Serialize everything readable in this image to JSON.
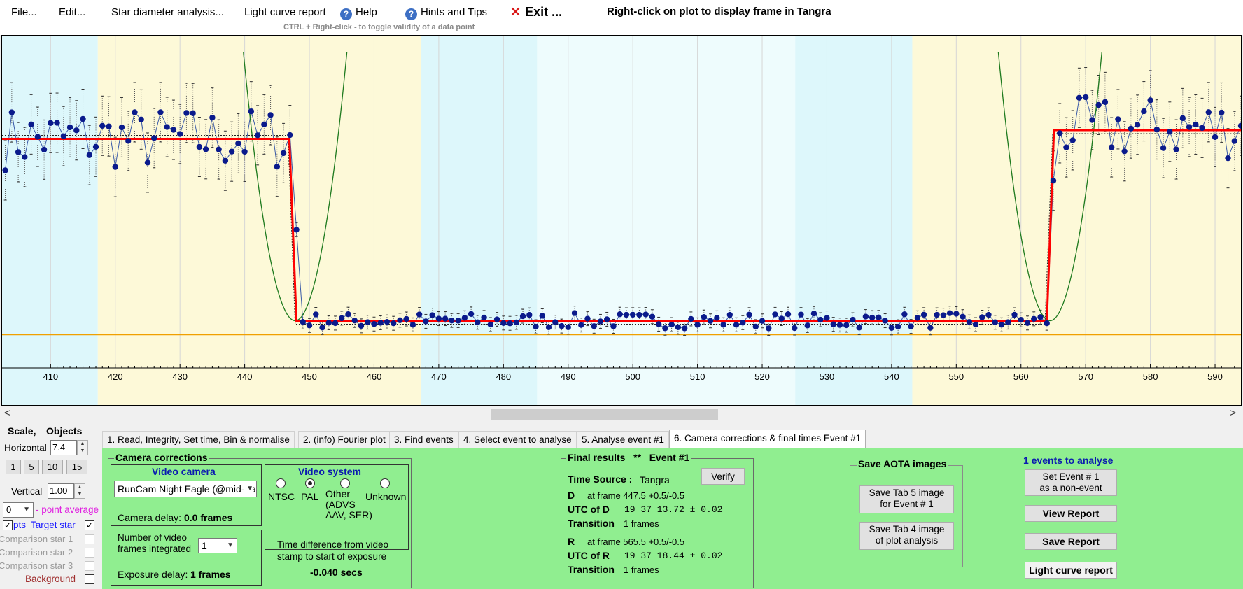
{
  "menu": {
    "file": "File...",
    "edit": "Edit...",
    "star_diameter": "Star diameter analysis...",
    "light_curve": "Light curve report",
    "help": "Help",
    "hints": "Hints and Tips",
    "exit": "Exit ...",
    "help_icon": "?",
    "exit_icon": "✕"
  },
  "plot_hint": "Right-click on plot to display frame in Tangra",
  "ctrl_hint": "CTRL + Right-click  -  to toggle validity of a data point",
  "chart_data": {
    "type": "line",
    "x_ticks": [
      "410",
      "420",
      "430",
      "440",
      "450",
      "460",
      "470",
      "480",
      "490",
      "500",
      "510",
      "520",
      "530",
      "540",
      "550",
      "560",
      "570",
      "580",
      "590"
    ],
    "xlim": [
      402.5,
      594
    ],
    "bands": [
      {
        "x0": 402.5,
        "x1": 417.3,
        "color": "#ddf7fb"
      },
      {
        "x0": 417.3,
        "x1": 467.2,
        "color": "#fdf9d8"
      },
      {
        "x0": 467.2,
        "x1": 485.2,
        "color": "#ddf7fb"
      },
      {
        "x0": 485.2,
        "x1": 525.1,
        "color": "#eefcfd"
      },
      {
        "x0": 525.1,
        "x1": 543.2,
        "color": "#ddf7fb"
      },
      {
        "x0": 543.2,
        "x1": 594.0,
        "color": "#fdf9d8"
      }
    ],
    "d_frame": 447.5,
    "r_frame": 565.5,
    "upper_level": 0.655,
    "lower_level": 0.135,
    "baseline_level": 0.095,
    "ylim": [
      0,
      0.95
    ],
    "colors": {
      "data": "#0a1a8c",
      "model": "#ff0000",
      "fit": "#1e7a1e",
      "baseline": "#f0a000",
      "error": "#555555"
    }
  },
  "scrollbar": {
    "left": "<",
    "right": ">"
  },
  "left_panel": {
    "scale_title": "Scale,",
    "objects_title": "Objects",
    "horizontal_label": "Horizontal",
    "horizontal_value": "7.4",
    "zoom_buttons": [
      "1",
      "5",
      "10",
      "15"
    ],
    "vertical_label": "Vertical",
    "vertical_value": "1.00",
    "average_value": "0",
    "average_label": "- point average",
    "pts_label": "pts",
    "target_label": "Target star",
    "comp1": "Comparison star 1",
    "comp2": "Comparison star 2",
    "comp3": "Comparison star 3",
    "background": "Background",
    "check_mark": "✓"
  },
  "tabs": [
    "1.  Read, Integrity, Set time, Bin & normalise",
    "2. (info)  Fourier plot",
    "3. Find events",
    "4. Select event to analyse",
    "5. Analyse event #1",
    "6. Camera corrections & final times Event #1"
  ],
  "camera": {
    "title": "Camera corrections",
    "video_camera_title": "Video camera",
    "camera_select": "RunCam Night Eagle (@mid-frame)",
    "camera_delay_label": "Camera delay:",
    "camera_delay_value": "0.0 frames",
    "video_system_title": "Video system",
    "ntsc": "NTSC",
    "pal": "PAL",
    "other": "Other",
    "other_sub1": "(ADVS",
    "other_sub2": "AAV, SER)",
    "unknown": "Unknown",
    "frames_integrated_1": "Number of video",
    "frames_integrated_2": "frames integrated",
    "frames_value": "1",
    "exposure_delay_label": "Exposure delay:",
    "exposure_delay_value": "1 frames",
    "time_diff_1": "Time difference from video",
    "time_diff_2": "stamp to start of exposure",
    "time_diff_value": "-0.040 secs"
  },
  "results": {
    "title": "Final results",
    "stars": "**",
    "event": "Event #1",
    "time_source_label": "Time Source :",
    "time_source_value": "Tangra",
    "verify": "Verify",
    "d_label": "D",
    "d_frame": "at frame 447.5  +0.5/-0.5",
    "utc_d_label": "UTC of D",
    "utc_d_value": "19 37 13.72  ± 0.02",
    "transition_label": "Transition",
    "transition_d": "1 frames",
    "r_label": "R",
    "r_frame": "at frame 565.5  +0.5/-0.5",
    "utc_r_label": "UTC of R",
    "utc_r_value": "19 37 18.44  ± 0.02",
    "transition_r": "1 frames"
  },
  "aota": {
    "title": "Save AOTA images",
    "tab5_line1": "Save Tab 5 image",
    "tab5_line2": "for Event # 1",
    "tab4_line1": "Save Tab 4 image",
    "tab4_line2": "of plot analysis"
  },
  "events": {
    "title": "1  events to analyse",
    "set_event_line1": "Set Event # 1",
    "set_event_line2": "as a non-event",
    "view_report": "View Report",
    "save_report": "Save Report",
    "light_curve_report": "Light curve report"
  }
}
